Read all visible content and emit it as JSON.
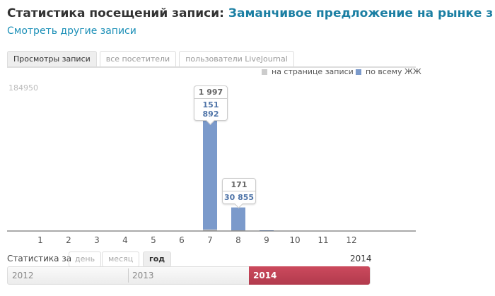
{
  "header": {
    "title_prefix": "Статистика посещений записи:",
    "post_title": "Заманчивое предложение на рынке з",
    "other_posts_link": "Смотреть другие записи"
  },
  "tabs": [
    {
      "label": "Просмотры записи",
      "active": true
    },
    {
      "label": "все посетители",
      "active": false
    },
    {
      "label": "пользователи LiveJournal",
      "active": false
    }
  ],
  "legend": [
    {
      "label": "на странице записи",
      "color": "#cccccc"
    },
    {
      "label": "по всему ЖЖ",
      "color": "#7b9acb"
    }
  ],
  "tooltips": [
    {
      "page_views": "1 997",
      "all_views": "151 892"
    },
    {
      "page_views": "171",
      "all_views": "30 855"
    }
  ],
  "chart_data": {
    "type": "bar",
    "y_max_label": "184950",
    "ylim": [
      0,
      184950
    ],
    "categories": [
      "1",
      "2",
      "3",
      "4",
      "5",
      "6",
      "7",
      "8",
      "9",
      "10",
      "11",
      "12"
    ],
    "series": [
      {
        "name": "на странице записи",
        "color": "#cccccc",
        "values": [
          0,
          0,
          0,
          0,
          0,
          0,
          1997,
          171,
          0,
          0,
          0,
          0
        ]
      },
      {
        "name": "по всему ЖЖ",
        "color": "#7b9acb",
        "values": [
          0,
          0,
          0,
          0,
          0,
          0,
          151892,
          30855,
          500,
          0,
          0,
          0
        ]
      }
    ],
    "annotations": [
      {
        "category": "7",
        "page": "1 997",
        "all": "151 892"
      },
      {
        "category": "8",
        "page": "171",
        "all": "30 855"
      }
    ]
  },
  "stats_controls": {
    "label": "Статистика за",
    "periods": [
      {
        "label": "день",
        "active": false
      },
      {
        "label": "месяц",
        "active": false
      },
      {
        "label": "год",
        "active": true
      }
    ],
    "current_year": "2014"
  },
  "timeline": {
    "years": [
      "2012",
      "2013",
      "2014"
    ],
    "selected": "2014"
  }
}
